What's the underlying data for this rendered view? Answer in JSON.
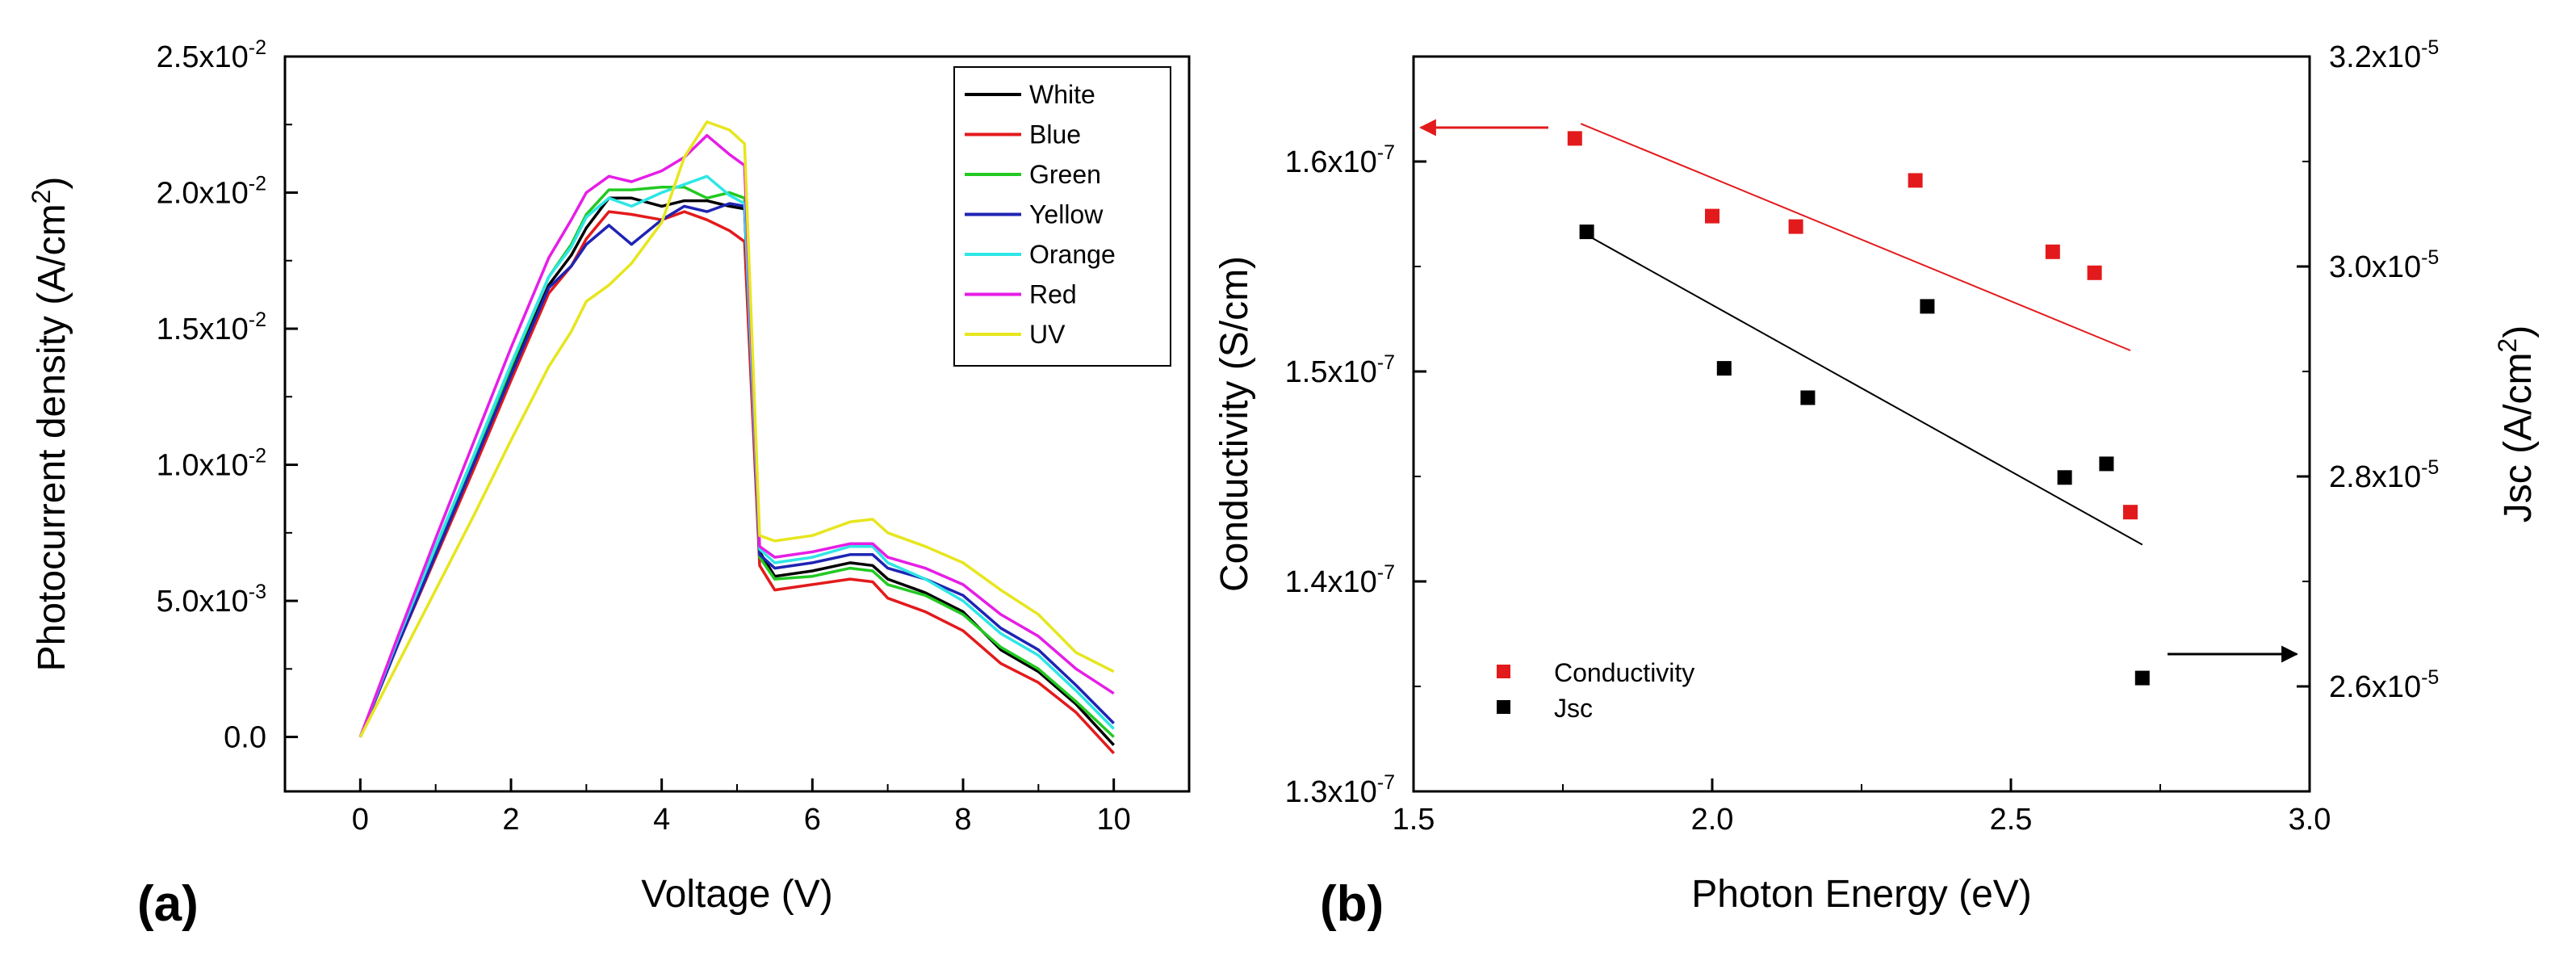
{
  "panels": {
    "a_label": "(a)",
    "b_label": "(b)"
  },
  "chart_data": [
    {
      "type": "line",
      "title": "",
      "xlabel": "Voltage (V)",
      "ylabel": "Photocurrent density (A/cm",
      "ylabel_sup": "2",
      "ylabel_tail": ")",
      "xlim": [
        -1,
        11
      ],
      "ylim": [
        -0.002,
        0.025
      ],
      "xticks": [
        0,
        2,
        4,
        6,
        8,
        10
      ],
      "xtick_labels": [
        "0",
        "2",
        "4",
        "6",
        "8",
        "10"
      ],
      "yticks": [
        0,
        0.005,
        0.01,
        0.015,
        0.02,
        0.025
      ],
      "ytick_labels": [
        {
          "base": "0.0",
          "exp": ""
        },
        {
          "base": "5.0x10",
          "exp": "-3"
        },
        {
          "base": "1.0x10",
          "exp": "-2"
        },
        {
          "base": "1.5x10",
          "exp": "-2"
        },
        {
          "base": "2.0x10",
          "exp": "-2"
        },
        {
          "base": "2.5x10",
          "exp": "-2"
        }
      ],
      "legend_position": "top-right",
      "series": [
        {
          "name": "White",
          "color": "#000000",
          "x": [
            0,
            0.5,
            1,
            1.5,
            2,
            2.5,
            2.8,
            3,
            3.3,
            3.6,
            4,
            4.3,
            4.6,
            4.9,
            5.1,
            5.3,
            5.5,
            6,
            6.5,
            6.8,
            7,
            7.5,
            8,
            8.5,
            9,
            9.5,
            10
          ],
          "y": [
            0,
            0.0035,
            0.0068,
            0.0101,
            0.0134,
            0.0166,
            0.0177,
            0.0187,
            0.0198,
            0.0198,
            0.0195,
            0.0197,
            0.0197,
            0.0195,
            0.0194,
            0.0068,
            0.0059,
            0.0061,
            0.0064,
            0.0063,
            0.0058,
            0.0053,
            0.0046,
            0.0032,
            0.0024,
            0.0012,
            -0.0003
          ]
        },
        {
          "name": "Blue",
          "color": "#e31a1c",
          "x": [
            0,
            0.5,
            1,
            1.5,
            2,
            2.5,
            2.8,
            3,
            3.3,
            3.6,
            4,
            4.3,
            4.6,
            4.9,
            5.1,
            5.3,
            5.5,
            6,
            6.5,
            6.8,
            7,
            7.5,
            8,
            8.5,
            9,
            9.5,
            10
          ],
          "y": [
            0,
            0.0034,
            0.0066,
            0.0098,
            0.0131,
            0.0163,
            0.0173,
            0.0183,
            0.0193,
            0.0192,
            0.019,
            0.0193,
            0.019,
            0.0186,
            0.0182,
            0.0063,
            0.0054,
            0.0056,
            0.0058,
            0.0057,
            0.0051,
            0.0046,
            0.0039,
            0.0027,
            0.002,
            0.0009,
            -0.0006
          ]
        },
        {
          "name": "Green",
          "color": "#22c922",
          "x": [
            0,
            0.5,
            1,
            1.5,
            2,
            2.5,
            2.8,
            3,
            3.3,
            3.6,
            4,
            4.3,
            4.6,
            4.9,
            5.1,
            5.3,
            5.5,
            6,
            6.5,
            6.8,
            7,
            7.5,
            8,
            8.5,
            9,
            9.5,
            10
          ],
          "y": [
            0,
            0.0035,
            0.0069,
            0.0102,
            0.0136,
            0.0169,
            0.0181,
            0.0192,
            0.0201,
            0.0201,
            0.0202,
            0.0202,
            0.0198,
            0.02,
            0.0198,
            0.0066,
            0.0058,
            0.0059,
            0.0062,
            0.0061,
            0.0056,
            0.0052,
            0.0045,
            0.0033,
            0.0025,
            0.0013,
            0.0
          ]
        },
        {
          "name": "Yellow",
          "color": "#1f24b3",
          "x": [
            0,
            0.5,
            1,
            1.5,
            2,
            2.5,
            2.8,
            3,
            3.3,
            3.6,
            4,
            4.3,
            4.6,
            4.9,
            5.1,
            5.3,
            5.5,
            6,
            6.5,
            6.8,
            7,
            7.5,
            8,
            8.5,
            9,
            9.5,
            10
          ],
          "y": [
            0,
            0.0034,
            0.0067,
            0.01,
            0.0133,
            0.0165,
            0.0173,
            0.0181,
            0.0188,
            0.0181,
            0.019,
            0.0195,
            0.0193,
            0.0196,
            0.0195,
            0.0067,
            0.0062,
            0.0064,
            0.0067,
            0.0067,
            0.0062,
            0.0058,
            0.0052,
            0.004,
            0.0032,
            0.0019,
            0.0005
          ]
        },
        {
          "name": "Orange",
          "color": "#2ee6e6",
          "x": [
            0,
            0.5,
            1,
            1.5,
            2,
            2.5,
            2.8,
            3,
            3.3,
            3.6,
            4,
            4.3,
            4.6,
            4.9,
            5.1,
            5.3,
            5.5,
            6,
            6.5,
            6.8,
            7,
            7.5,
            8,
            8.5,
            9,
            9.5,
            10
          ],
          "y": [
            0,
            0.0036,
            0.007,
            0.0103,
            0.0137,
            0.0169,
            0.018,
            0.0191,
            0.0198,
            0.0195,
            0.02,
            0.0203,
            0.0206,
            0.0199,
            0.0196,
            0.0069,
            0.0064,
            0.0066,
            0.007,
            0.007,
            0.0064,
            0.0058,
            0.005,
            0.0038,
            0.003,
            0.0017,
            0.0003
          ]
        },
        {
          "name": "Red",
          "color": "#e61ee6",
          "x": [
            0,
            0.5,
            1,
            1.5,
            2,
            2.5,
            2.8,
            3,
            3.3,
            3.6,
            4,
            4.3,
            4.6,
            4.9,
            5.1,
            5.3,
            5.5,
            6,
            6.5,
            6.8,
            7,
            7.5,
            8,
            8.5,
            9,
            9.5,
            10
          ],
          "y": [
            0,
            0.0037,
            0.0073,
            0.0108,
            0.0143,
            0.0176,
            0.019,
            0.02,
            0.0206,
            0.0204,
            0.0208,
            0.0213,
            0.0221,
            0.0214,
            0.021,
            0.007,
            0.0066,
            0.0068,
            0.0071,
            0.0071,
            0.0066,
            0.0062,
            0.0056,
            0.0045,
            0.0037,
            0.0025,
            0.0016
          ]
        },
        {
          "name": "UV",
          "color": "#e6e61e",
          "x": [
            0,
            0.5,
            1,
            1.5,
            2,
            2.5,
            2.8,
            3,
            3.3,
            3.6,
            4,
            4.3,
            4.6,
            4.9,
            5.1,
            5.3,
            5.5,
            6,
            6.5,
            6.8,
            7,
            7.5,
            8,
            8.5,
            9,
            9.5,
            10
          ],
          "y": [
            0,
            0.0027,
            0.0054,
            0.0081,
            0.0109,
            0.0136,
            0.0149,
            0.016,
            0.0166,
            0.0174,
            0.0189,
            0.0213,
            0.0226,
            0.0223,
            0.0218,
            0.0074,
            0.0072,
            0.0074,
            0.0079,
            0.008,
            0.0075,
            0.007,
            0.0064,
            0.0054,
            0.0045,
            0.0031,
            0.0024
          ]
        }
      ]
    },
    {
      "type": "scatter",
      "title": "",
      "xlabel": "Photon Energy (eV)",
      "ylabel": "Conductivity (S/cm)",
      "y2label": "Jsc (A/cm",
      "y2label_sup": "2",
      "y2label_tail": ")",
      "xlim": [
        1.5,
        3.0
      ],
      "ylim": [
        1.3e-07,
        1.65e-07
      ],
      "y2lim": [
        2.5e-05,
        3.2e-05
      ],
      "xticks": [
        1.5,
        2.0,
        2.5,
        3.0
      ],
      "xtick_labels": [
        "1.5",
        "2.0",
        "2.5",
        "3.0"
      ],
      "yticks": [
        1.3e-07,
        1.4e-07,
        1.5e-07,
        1.6e-07
      ],
      "ytick_labels": [
        {
          "base": "1.3x10",
          "exp": "-7"
        },
        {
          "base": "1.4x10",
          "exp": "-7"
        },
        {
          "base": "1.5x10",
          "exp": "-7"
        },
        {
          "base": "1.6x10",
          "exp": "-7"
        }
      ],
      "y2ticks": [
        2.6e-05,
        2.8e-05,
        3e-05,
        3.2e-05
      ],
      "y2tick_labels": [
        {
          "base": "2.6x10",
          "exp": "-5"
        },
        {
          "base": "2.8x10",
          "exp": "-5"
        },
        {
          "base": "3.0x10",
          "exp": "-5"
        },
        {
          "base": "3.2x10",
          "exp": "-5"
        }
      ],
      "legend_position": "bottom-left",
      "series": [
        {
          "name": "Conductivity",
          "color": "#e31a1c",
          "axis": "left",
          "x": [
            1.77,
            2.0,
            2.14,
            2.34,
            2.57,
            2.64,
            2.7
          ],
          "y": [
            1.611e-07,
            1.574e-07,
            1.569e-07,
            1.591e-07,
            1.557e-07,
            1.547e-07,
            1.433e-07
          ],
          "fit": {
            "x": [
              1.78,
              2.7
            ],
            "y": [
              1.618e-07,
              1.51e-07
            ]
          }
        },
        {
          "name": "Jsc",
          "color": "#000000",
          "axis": "right",
          "x": [
            1.79,
            2.02,
            2.16,
            2.36,
            2.59,
            2.66,
            2.72
          ],
          "y": [
            3.033e-05,
            2.903e-05,
            2.875e-05,
            2.962e-05,
            2.799e-05,
            2.812e-05,
            2.608e-05
          ],
          "fit": {
            "x": [
              1.79,
              2.72
            ],
            "y": [
              3.03e-05,
              2.735e-05
            ]
          }
        }
      ],
      "annotations": [
        {
          "type": "arrow",
          "direction": "left",
          "color": "#e31a1c",
          "target": "left-axis"
        },
        {
          "type": "arrow",
          "direction": "right",
          "color": "#000000",
          "target": "right-axis"
        }
      ]
    }
  ]
}
